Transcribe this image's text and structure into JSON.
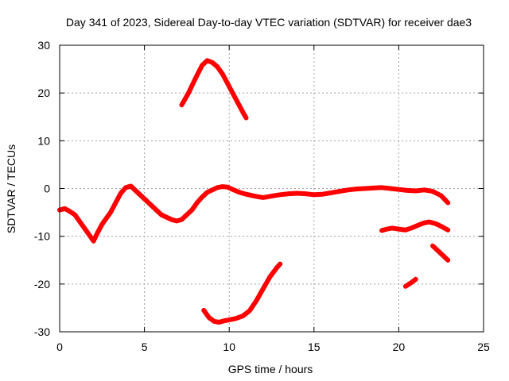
{
  "chart_data": {
    "type": "line",
    "title": "Day 341 of 2023, Sidereal Day-to-day VTEC variation (SDTVAR) for receiver dae3",
    "xlabel": "GPS time / hours",
    "ylabel": "SDTVAR / TECUs",
    "xlim": [
      0,
      25
    ],
    "ylim": [
      -30,
      30
    ],
    "xticks": [
      0,
      5,
      10,
      15,
      20,
      25
    ],
    "yticks": [
      -30,
      -20,
      -10,
      0,
      10,
      20,
      30
    ],
    "grid": true,
    "series_color": "#ff0000",
    "series": [
      {
        "name": "main-arc",
        "x": [
          0,
          0.3,
          0.6,
          0.9,
          1.2,
          1.5,
          1.8,
          2.0,
          2.2,
          2.5,
          2.8,
          3.0,
          3.3,
          3.6,
          3.9,
          4.2,
          4.5,
          4.8,
          5.1,
          5.4,
          5.7,
          6.0,
          6.3,
          6.6,
          6.9,
          7.2,
          7.5,
          7.8,
          8.1,
          8.4,
          8.7,
          9.0,
          9.3,
          9.6,
          9.9,
          10.2,
          10.6,
          11.0,
          11.5,
          12.0,
          12.5,
          13.0,
          13.5,
          14.0,
          14.5,
          15.0,
          15.5,
          16.0,
          16.5,
          17.0,
          17.5,
          18.0,
          18.5,
          19.0,
          19.5,
          20.0,
          20.5,
          21.0,
          21.5,
          22.0,
          22.5,
          22.9
        ],
        "y": [
          -4.5,
          -4.2,
          -4.8,
          -5.5,
          -7.0,
          -8.5,
          -10.0,
          -11.0,
          -9.5,
          -7.5,
          -6.0,
          -5.0,
          -3.0,
          -1.0,
          0.2,
          0.5,
          -0.5,
          -1.5,
          -2.5,
          -3.5,
          -4.5,
          -5.5,
          -6.0,
          -6.5,
          -6.8,
          -6.5,
          -5.5,
          -4.5,
          -3.0,
          -1.8,
          -0.8,
          -0.3,
          0.2,
          0.4,
          0.3,
          -0.2,
          -0.8,
          -1.2,
          -1.6,
          -1.9,
          -1.6,
          -1.3,
          -1.1,
          -1.0,
          -1.1,
          -1.3,
          -1.2,
          -0.9,
          -0.6,
          -0.3,
          -0.1,
          0.0,
          0.1,
          0.2,
          0.0,
          -0.2,
          -0.4,
          -0.5,
          -0.3,
          -0.6,
          -1.5,
          -3.0
        ]
      },
      {
        "name": "upper-arc",
        "x": [
          7.2,
          7.6,
          8.0,
          8.4,
          8.7,
          9.0,
          9.3,
          9.6,
          9.9,
          10.2,
          10.5,
          10.8,
          11.0
        ],
        "y": [
          17.5,
          20.0,
          23.0,
          25.8,
          26.8,
          26.4,
          25.5,
          24.0,
          22.0,
          20.0,
          18.0,
          16.0,
          14.8
        ]
      },
      {
        "name": "lower-arc",
        "x": [
          8.5,
          8.8,
          9.1,
          9.4,
          9.7,
          10.0,
          10.4,
          10.8,
          11.2,
          11.6,
          12.0,
          12.4,
          12.8,
          13.0
        ],
        "y": [
          -25.5,
          -27.0,
          -27.8,
          -28.0,
          -27.7,
          -27.5,
          -27.2,
          -26.7,
          -25.6,
          -23.5,
          -21.0,
          -18.5,
          -16.6,
          -15.8
        ]
      },
      {
        "name": "right-arc",
        "x": [
          19.0,
          19.3,
          19.6,
          20.0,
          20.4,
          20.8,
          21.2,
          21.5,
          21.8,
          22.2,
          22.6,
          22.9
        ],
        "y": [
          -8.8,
          -8.5,
          -8.3,
          -8.5,
          -8.7,
          -8.2,
          -7.6,
          -7.2,
          -7.0,
          -7.4,
          -8.1,
          -8.7
        ]
      },
      {
        "name": "steep-arc",
        "x": [
          22.0,
          22.3,
          22.6,
          22.9
        ],
        "y": [
          -12.0,
          -13.0,
          -14.0,
          -15.0
        ]
      },
      {
        "name": "short-arc",
        "x": [
          20.4,
          20.7,
          21.0
        ],
        "y": [
          -20.5,
          -19.8,
          -19.0
        ]
      }
    ]
  }
}
